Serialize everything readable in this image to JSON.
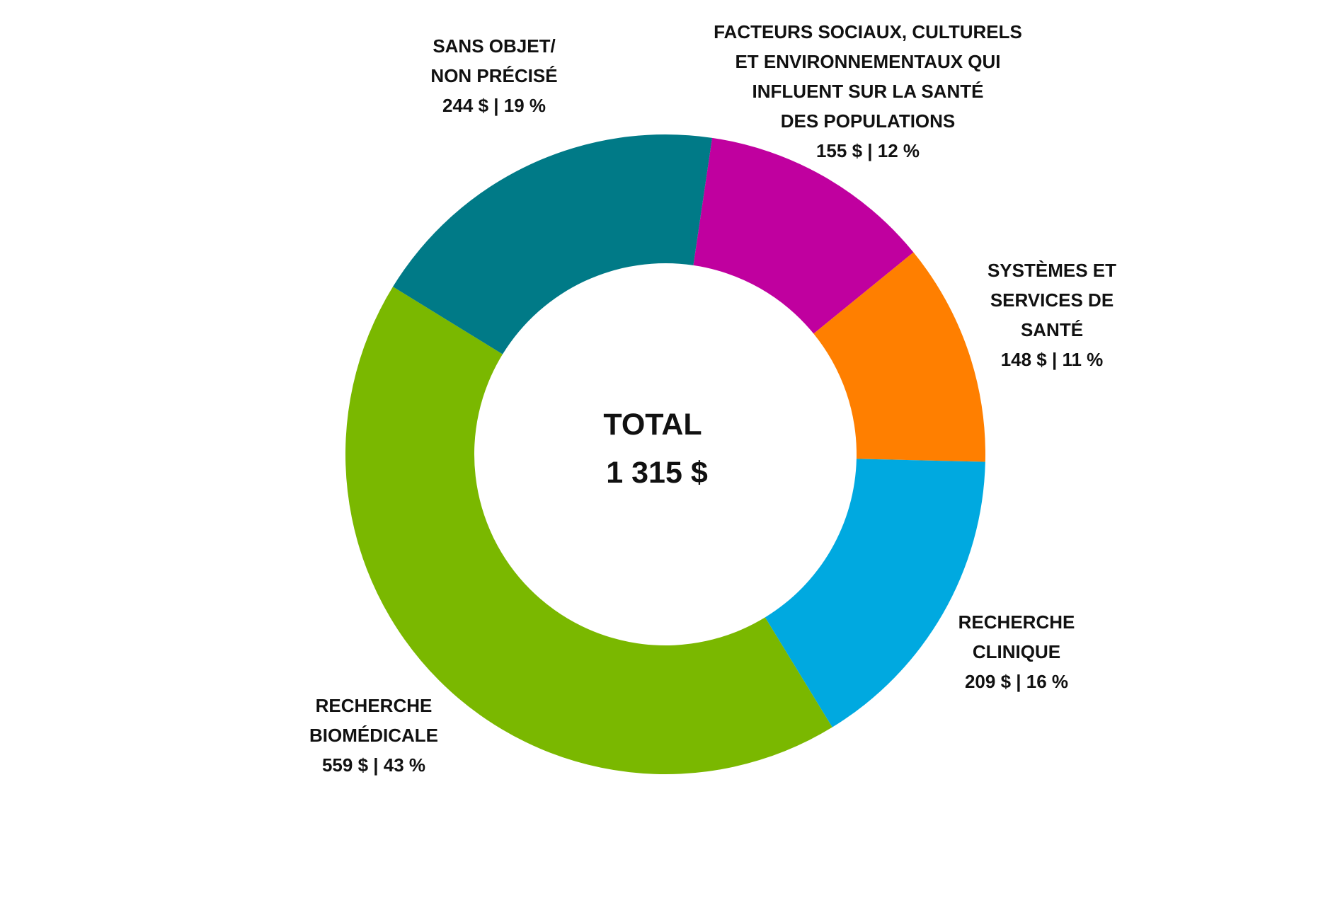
{
  "chart_data": {
    "type": "donut",
    "categories": [
      "FACTEURS SOCIAUX, CULTURELS\nET ENVIRONNEMENTAUX QUI\nINFLUENT SUR LA SANTÉ\nDES POPULATIONS",
      "SYSTÈMES ET\nSERVICES DE\nSANTÉ",
      "RECHERCHE\nCLINIQUE",
      "RECHERCHE\nBIOMÉDICALE",
      "SANS OBJET/\nNON PRÉCISÉ"
    ],
    "values": [
      155,
      148,
      209,
      559,
      244
    ],
    "value_labels": [
      "155 $ | 12 %",
      "148 $ | 11 %",
      "209 $ | 16 %",
      "559 $ | 43 %",
      "244 $ | 19 %"
    ],
    "colors": [
      "#c0009f",
      "#ff7f00",
      "#00a9e0",
      "#7ab800",
      "#007a87"
    ],
    "center_title": "TOTAL",
    "total": {
      "value": 1315,
      "label": "1 315 $"
    }
  }
}
